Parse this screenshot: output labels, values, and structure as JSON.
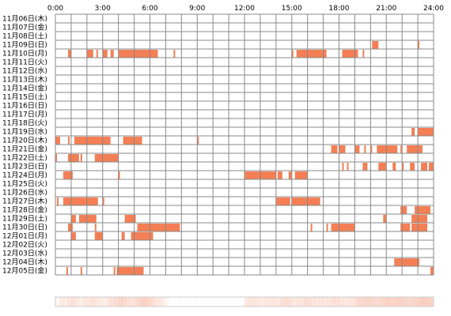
{
  "chart_data": {
    "type": "heatmap",
    "x_tick_labels": [
      "0:00",
      "3:00",
      "6:00",
      "9:00",
      "12:00",
      "15:00",
      "18:00",
      "21:00",
      "24:00"
    ],
    "xlim": [
      0,
      24
    ],
    "grid": true,
    "colors": {
      "bar": "#f47f55",
      "grid": "#888888",
      "background": "#ffffff",
      "strip": "#f6b6a0"
    },
    "rows": [
      {
        "label": "11月06日(木)",
        "segments": []
      },
      {
        "label": "11月07日(金)",
        "segments": []
      },
      {
        "label": "11月08日(土)",
        "segments": []
      },
      {
        "label": "11月09日(日)",
        "segments": [
          [
            20.1,
            20.5
          ],
          [
            23.0,
            23.1
          ]
        ]
      },
      {
        "label": "11月10日(月)",
        "segments": [
          [
            0.8,
            1.0
          ],
          [
            2.0,
            2.4
          ],
          [
            2.6,
            2.7
          ],
          [
            3.0,
            3.3
          ],
          [
            3.5,
            3.7
          ],
          [
            4.0,
            6.5
          ],
          [
            7.5,
            7.6
          ],
          [
            15.0,
            15.1
          ],
          [
            15.3,
            17.2
          ],
          [
            18.2,
            19.2
          ],
          [
            19.5,
            19.6
          ]
        ]
      },
      {
        "label": "11月11日(火)",
        "segments": []
      },
      {
        "label": "11月12日(水)",
        "segments": []
      },
      {
        "label": "11月13日(木)",
        "segments": []
      },
      {
        "label": "11月14日(金)",
        "segments": []
      },
      {
        "label": "11月15日(土)",
        "segments": []
      },
      {
        "label": "11月16日(日)",
        "segments": []
      },
      {
        "label": "11月17日(月)",
        "segments": []
      },
      {
        "label": "11月18日(火)",
        "segments": []
      },
      {
        "label": "11月19日(水)",
        "segments": [
          [
            22.6,
            22.8
          ],
          [
            23.0,
            24.0
          ]
        ]
      },
      {
        "label": "11月20日(木)",
        "segments": [
          [
            0.0,
            0.3
          ],
          [
            0.8,
            0.9
          ],
          [
            1.2,
            3.5
          ],
          [
            4.3,
            5.5
          ],
          [
            9.0,
            9.1
          ]
        ]
      },
      {
        "label": "11月21日(金)",
        "segments": [
          [
            17.5,
            17.9
          ],
          [
            18.0,
            18.4
          ],
          [
            19.0,
            19.3
          ],
          [
            19.6,
            19.7
          ],
          [
            20.0,
            20.1
          ],
          [
            20.4,
            21.7
          ],
          [
            21.9,
            22.0
          ],
          [
            22.3,
            23.3
          ]
        ]
      },
      {
        "label": "11月22日(土)",
        "segments": [
          [
            0.0,
            0.1
          ],
          [
            0.8,
            1.5
          ],
          [
            1.6,
            1.7
          ],
          [
            2.5,
            4.0
          ]
        ]
      },
      {
        "label": "11月23日(日)",
        "segments": [
          [
            18.2,
            18.3
          ],
          [
            18.5,
            18.6
          ],
          [
            19.5,
            19.8
          ],
          [
            20.5,
            21.0
          ],
          [
            21.4,
            21.6
          ],
          [
            22.0,
            22.1
          ],
          [
            22.5,
            22.8
          ],
          [
            23.2,
            23.6
          ],
          [
            23.7,
            24.0
          ]
        ]
      },
      {
        "label": "11月24日(月)",
        "segments": [
          [
            0.5,
            1.1
          ],
          [
            4.0,
            4.1
          ],
          [
            12.0,
            14.0
          ],
          [
            14.1,
            14.4
          ],
          [
            14.8,
            15.0
          ],
          [
            15.2,
            16.0
          ]
        ]
      },
      {
        "label": "11月25日(火)",
        "segments": []
      },
      {
        "label": "11月26日(水)",
        "segments": []
      },
      {
        "label": "11月27日(木)",
        "segments": [
          [
            0.1,
            0.2
          ],
          [
            0.5,
            2.7
          ],
          [
            3.0,
            3.1
          ],
          [
            14.0,
            14.9
          ],
          [
            15.0,
            16.8
          ]
        ]
      },
      {
        "label": "11月28日(金)",
        "segments": [
          [
            21.9,
            22.3
          ],
          [
            22.8,
            23.8
          ]
        ]
      },
      {
        "label": "11月29日(土)",
        "segments": [
          [
            1.0,
            1.3
          ],
          [
            1.5,
            2.6
          ],
          [
            4.4,
            5.1
          ],
          [
            20.8,
            21.0
          ],
          [
            22.6,
            23.6
          ]
        ]
      },
      {
        "label": "11月30日(日)",
        "segments": [
          [
            0.8,
            1.1
          ],
          [
            2.5,
            2.6
          ],
          [
            5.2,
            7.9
          ],
          [
            16.2,
            16.3
          ],
          [
            17.2,
            17.3
          ],
          [
            17.5,
            19.0
          ],
          [
            21.9,
            22.5
          ],
          [
            22.6,
            23.6
          ]
        ]
      },
      {
        "label": "12月01日(月)",
        "segments": [
          [
            1.0,
            1.3
          ],
          [
            2.5,
            3.0
          ],
          [
            4.2,
            4.4
          ],
          [
            4.8,
            6.2
          ]
        ]
      },
      {
        "label": "12月02日(火)",
        "segments": []
      },
      {
        "label": "12月03日(水)",
        "segments": []
      },
      {
        "label": "12月04日(木)",
        "segments": [
          [
            21.5,
            23.1
          ]
        ]
      },
      {
        "label": "12月05日(金)",
        "segments": [
          [
            0.7,
            0.8
          ],
          [
            1.6,
            1.7
          ],
          [
            3.7,
            3.8
          ],
          [
            3.9,
            5.6
          ],
          [
            23.8,
            24.0
          ]
        ]
      }
    ],
    "summary_strip": [
      0.1,
      0.3,
      0.25,
      0.35,
      0.4,
      0.3,
      0.2,
      0.35,
      0.3,
      0.4,
      0.3,
      0.25,
      0.2,
      0.35,
      0.4,
      0.45,
      0.55,
      0.5,
      0.4,
      0.35,
      0.45,
      0.55,
      0.6,
      0.55,
      0.45,
      0.35,
      0.3,
      0.2,
      0.1,
      0.0,
      0.0,
      0.05,
      0.0,
      0.0,
      0.0,
      0.05,
      0.0,
      0.0,
      0.0,
      0.0,
      0.0,
      0.0,
      0.0,
      0.0,
      0.0,
      0.0,
      0.0,
      0.0,
      0.3,
      0.35,
      0.35,
      0.3,
      0.25,
      0.3,
      0.35,
      0.35,
      0.3,
      0.4,
      0.45,
      0.4,
      0.3,
      0.35,
      0.35,
      0.45,
      0.4,
      0.35,
      0.3,
      0.35,
      0.3,
      0.35,
      0.4,
      0.4,
      0.35,
      0.3,
      0.3,
      0.35,
      0.45,
      0.5,
      0.5,
      0.55,
      0.5,
      0.45,
      0.5,
      0.55,
      0.6,
      0.55,
      0.6,
      0.6,
      0.55,
      0.5,
      0.5,
      0.55,
      0.6,
      0.65,
      0.6,
      0.55
    ]
  }
}
